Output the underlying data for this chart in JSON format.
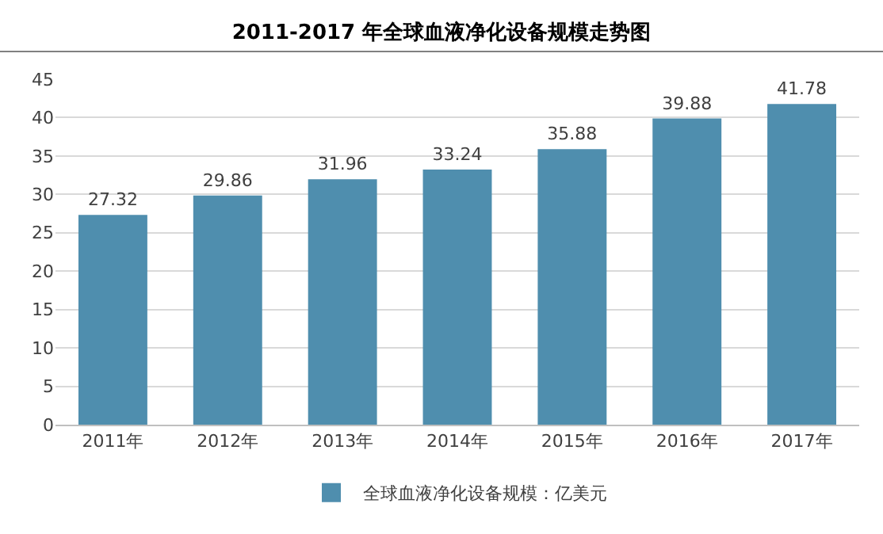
{
  "chart_data": {
    "type": "bar",
    "title": "2011-2017 年全球血液净化设备规模走势图",
    "categories": [
      "2011年",
      "2012年",
      "2013年",
      "2014年",
      "2015年",
      "2016年",
      "2017年"
    ],
    "series": [
      {
        "name": "全球血液净化设备规模：亿美元",
        "color": "#4f8eae",
        "values": [
          27.32,
          29.86,
          31.96,
          33.24,
          35.88,
          39.88,
          41.78
        ]
      }
    ],
    "ylim": [
      0,
      45
    ],
    "yticks": [
      0,
      5,
      10,
      15,
      20,
      25,
      30,
      35,
      40,
      45
    ],
    "grid": "y",
    "legend": "bottom",
    "data_labels": true
  }
}
